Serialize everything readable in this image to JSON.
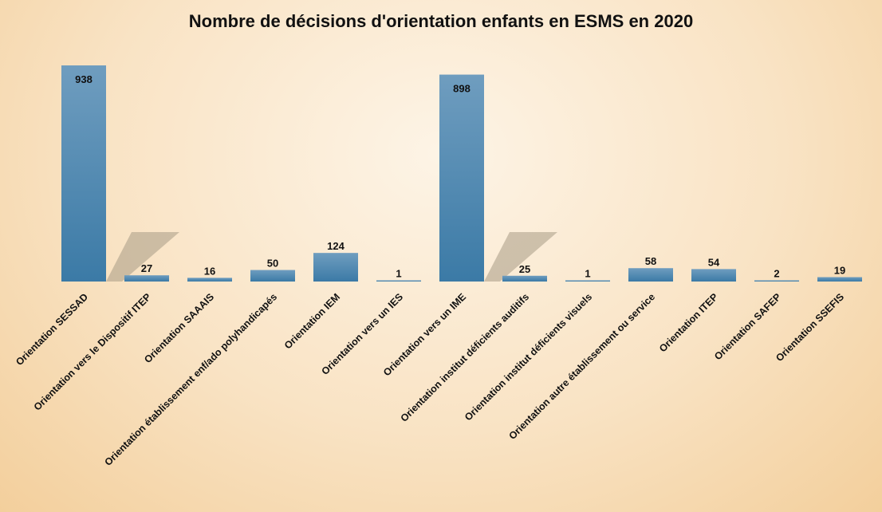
{
  "chart_data": {
    "type": "bar",
    "title": "Nombre de décisions d'orientation enfants en ESMS en 2020",
    "categories": [
      "Orientation SESSAD",
      "Orientation vers le Dispositif ITEP",
      "Orientation SAAAIS",
      "Orientation établissement enf/ado polyhandicapés",
      "Orientation IEM",
      "Orientation vers un IES",
      "Orientation vers un IME",
      "Orientation institut déficients auditifs",
      "Orientation institut déficients visuels",
      "Orientation autre établissement ou service",
      "Orientation ITEP",
      "Orientation SAFEP",
      "Orientation SSEFIS"
    ],
    "values": [
      938,
      27,
      16,
      50,
      124,
      1,
      898,
      25,
      1,
      58,
      54,
      2,
      19
    ],
    "xlabel": "",
    "ylabel": "",
    "ylim": [
      0,
      960
    ],
    "grid": false,
    "legend": "none",
    "colors": {
      "bar_top": "#6f9dbf",
      "bar_bottom": "#3b7aa6",
      "shadow": "#a89a85"
    }
  }
}
